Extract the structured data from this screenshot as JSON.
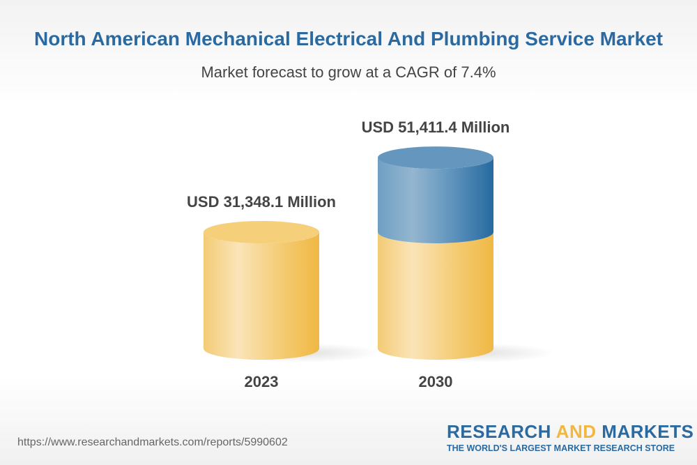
{
  "chart_data": {
    "type": "bar",
    "title": "North American Mechanical Electrical And Plumbing Service Market",
    "subtitle": "Market forecast to grow at a CAGR of 7.4%",
    "categories": [
      "2023",
      "2030"
    ],
    "values": [
      31348.1,
      51411.4
    ],
    "data_labels": [
      "USD 31,348.1 Million",
      "USD 51,411.4 Million"
    ],
    "colors": {
      "base": "#f1b73e",
      "growth": "#2a6aa1"
    }
  },
  "footer": {
    "url": "https://www.researchandmarkets.com/reports/5990602",
    "logo_part1": "RESEARCH ",
    "logo_part2": "AND",
    "logo_part3": " MARKETS",
    "tagline": "THE WORLD'S LARGEST MARKET RESEARCH STORE"
  }
}
